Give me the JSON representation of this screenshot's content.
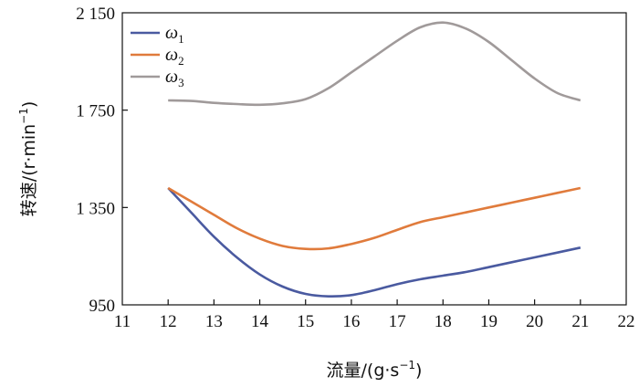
{
  "chart_data": {
    "type": "line",
    "xlabel_main": "流量/(g·s",
    "xlabel_sup": "−1",
    "xlabel_close": ")",
    "ylabel_main": "转速/(r·min",
    "ylabel_sup": "−1",
    "ylabel_close": ")",
    "xlim": [
      11,
      22
    ],
    "ylim": [
      950,
      2150
    ],
    "xticks": [
      11,
      12,
      13,
      14,
      15,
      16,
      17,
      18,
      19,
      20,
      21,
      22
    ],
    "xtick_labels": [
      "11",
      "12",
      "13",
      "14",
      "15",
      "16",
      "17",
      "18",
      "19",
      "20",
      "21",
      "22"
    ],
    "yticks": [
      950,
      1350,
      1750,
      2150
    ],
    "ytick_labels": [
      "950",
      "1 350",
      "1 750",
      "2 150"
    ],
    "grid": false,
    "legend_position": "top-left",
    "series": [
      {
        "name": "ω",
        "sub": "1",
        "color": "#4a5aa0",
        "x": [
          12,
          12.5,
          13,
          13.5,
          14,
          14.5,
          15,
          15.5,
          16,
          16.5,
          17,
          17.5,
          18,
          18.5,
          19,
          19.5,
          20,
          20.5,
          21
        ],
        "y": [
          1430,
          1330,
          1230,
          1145,
          1075,
          1025,
          995,
          985,
          990,
          1010,
          1035,
          1055,
          1070,
          1085,
          1105,
          1125,
          1145,
          1165,
          1185
        ]
      },
      {
        "name": "ω",
        "sub": "2",
        "color": "#e07b3c",
        "x": [
          12,
          12.5,
          13,
          13.5,
          14,
          14.5,
          15,
          15.5,
          16,
          16.5,
          17,
          17.5,
          18,
          18.5,
          19,
          19.5,
          20,
          20.5,
          21
        ],
        "y": [
          1430,
          1375,
          1320,
          1265,
          1222,
          1192,
          1180,
          1182,
          1200,
          1225,
          1258,
          1290,
          1310,
          1330,
          1350,
          1370,
          1390,
          1410,
          1430
        ]
      },
      {
        "name": "ω",
        "sub": "3",
        "color": "#a09a9a",
        "x": [
          12,
          12.5,
          13,
          13.5,
          14,
          14.5,
          15,
          15.5,
          16,
          16.5,
          17,
          17.5,
          18,
          18.5,
          19,
          19.5,
          20,
          20.5,
          21
        ],
        "y": [
          1790,
          1788,
          1780,
          1775,
          1772,
          1778,
          1795,
          1840,
          1905,
          1970,
          2035,
          2090,
          2110,
          2085,
          2030,
          1955,
          1880,
          1820,
          1790
        ]
      }
    ]
  }
}
